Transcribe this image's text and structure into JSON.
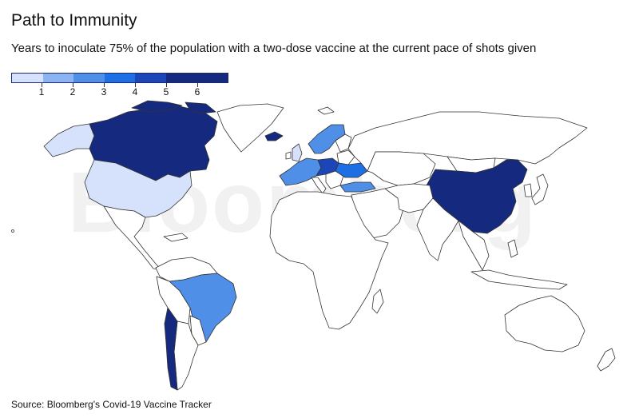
{
  "title": "Path to Immunity",
  "subtitle": "Years to inoculate 75% of the population with a two-dose vaccine at the current pace of shots given",
  "legend": {
    "labels": [
      "1",
      "2",
      "3",
      "4",
      "5",
      "6"
    ],
    "colors": [
      "#d6e2fb",
      "#8db4f2",
      "#4f8fe8",
      "#1e6fe3",
      "#1c45b8",
      "#152a7e"
    ]
  },
  "watermark": "Bloomberg",
  "source": "Source: Bloomberg's Covid-19 Vaccine Tracker",
  "map_data": {
    "regions": [
      {
        "name": "United States",
        "bin": 1
      },
      {
        "name": "Alaska",
        "bin": 1
      },
      {
        "name": "Canada",
        "bin": 6
      },
      {
        "name": "Brazil",
        "bin": 3
      },
      {
        "name": "Chile",
        "bin": 6
      },
      {
        "name": "Argentina",
        "bin": 0
      },
      {
        "name": "United Kingdom",
        "bin": 1
      },
      {
        "name": "Iceland",
        "bin": 6
      },
      {
        "name": "Scandinavia",
        "bin": 3
      },
      {
        "name": "Western Europe",
        "bin": 3
      },
      {
        "name": "Central Europe",
        "bin": 5
      },
      {
        "name": "Eastern Europe",
        "bin": 4
      },
      {
        "name": "Turkey",
        "bin": 3
      },
      {
        "name": "Russia",
        "bin": 0
      },
      {
        "name": "China",
        "bin": 6
      },
      {
        "name": "India",
        "bin": 0
      },
      {
        "name": "Africa",
        "bin": 0
      },
      {
        "name": "Australia",
        "bin": 0
      }
    ]
  }
}
